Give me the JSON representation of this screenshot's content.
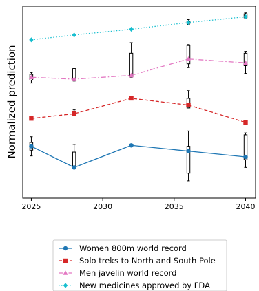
{
  "chart_data": {
    "type": "line",
    "title": "",
    "xlabel": "",
    "ylabel": "Normalized prediction",
    "xlim": [
      2024.4,
      2040.7
    ],
    "ylim": [
      0,
      1
    ],
    "x_ticks": [
      2025,
      2030,
      2035,
      2040
    ],
    "y_ticks_shown": false,
    "grid": false,
    "legend_position": "bottom-center, below plot",
    "x": [
      2025,
      2028,
      2032,
      2036,
      2040
    ],
    "series": [
      {
        "name": "Women 800m world record",
        "color": "#1f77b4",
        "linestyle": "solid",
        "marker": "circle",
        "values": [
          0.27,
          0.16,
          0.275,
          0.245,
          0.215
        ],
        "box_low": [
          0.22,
          0.16,
          0.275,
          0.09,
          0.16
        ],
        "box_q1": [
          0.25,
          0.16,
          0.275,
          0.13,
          0.2
        ],
        "box_q3": [
          0.29,
          0.24,
          0.275,
          0.27,
          0.33
        ],
        "box_high": [
          0.32,
          0.28,
          0.275,
          0.35,
          0.34
        ]
      },
      {
        "name": "Solo treks to North and South Pole",
        "color": "#d62728",
        "linestyle": "dashed",
        "marker": "square",
        "values": [
          0.415,
          0.44,
          0.52,
          0.485,
          0.395
        ],
        "box_low": [
          0.415,
          0.435,
          0.52,
          0.47,
          0.385
        ],
        "box_q1": [
          0.415,
          0.435,
          0.52,
          0.47,
          0.385
        ],
        "box_q3": [
          0.415,
          0.45,
          0.52,
          0.52,
          0.405
        ],
        "box_high": [
          0.415,
          0.46,
          0.52,
          0.56,
          0.405
        ]
      },
      {
        "name": "Men javelin world record",
        "color": "#e377c2",
        "linestyle": "dashdot",
        "marker": "triangle",
        "values": [
          0.63,
          0.62,
          0.64,
          0.725,
          0.705
        ],
        "box_low": [
          0.6,
          0.61,
          0.63,
          0.68,
          0.65
        ],
        "box_q1": [
          0.615,
          0.615,
          0.635,
          0.7,
          0.69
        ],
        "box_q3": [
          0.645,
          0.675,
          0.755,
          0.795,
          0.755
        ],
        "box_high": [
          0.655,
          0.675,
          0.81,
          0.8,
          0.765
        ]
      },
      {
        "name": "New medicines approved by FDA",
        "color": "#17becf",
        "linestyle": "dotted",
        "marker": "diamond",
        "values": [
          0.825,
          0.85,
          0.88,
          0.915,
          0.945
        ],
        "box_low": [
          0.825,
          0.85,
          0.88,
          0.905,
          0.935
        ],
        "box_q1": [
          0.825,
          0.85,
          0.88,
          0.91,
          0.94
        ],
        "box_q3": [
          0.825,
          0.85,
          0.88,
          0.92,
          0.96
        ],
        "box_high": [
          0.825,
          0.85,
          0.88,
          0.93,
          0.965
        ]
      }
    ]
  }
}
